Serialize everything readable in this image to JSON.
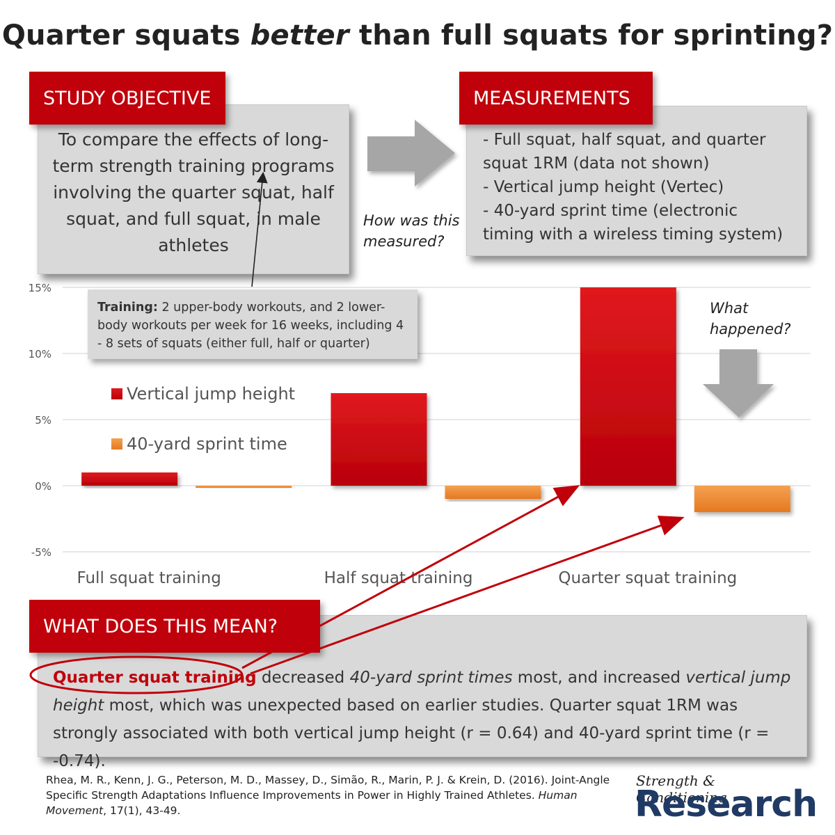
{
  "title": {
    "part1": "Quarter squats ",
    "emph": "better",
    "part2": " than full squats for sprinting?"
  },
  "objective": {
    "label": "STUDY OBJECTIVE",
    "text": "To compare the effects of long-term strength training programs involving the quarter squat, half squat, and full squat, in male athletes"
  },
  "measurements": {
    "label": "MEASUREMENTS",
    "items": [
      "- Full squat, half squat, and quarter",
      "squat 1RM (data not shown)",
      "- Vertical jump height (Vertec)",
      "- 40-yard sprint time (electronic",
      "timing with a wireless timing system)"
    ]
  },
  "annotations": {
    "how_line1": "How was this",
    "how_line2": "measured?",
    "what_line1": "What",
    "what_line2": "happened?"
  },
  "training": {
    "bold": "Training:",
    "text": " 2 upper-body workouts, and 2 lower-body workouts per week for 16 weeks, including 4 - 8 sets of squats (either full, half or quarter)"
  },
  "meaning": {
    "label": "WHAT DOES THIS MEAN?",
    "highlight": "Quarter squat training",
    "t1": " decreased ",
    "i1": "40-yard sprint times",
    "t2": " most, and increased ",
    "i2": "vertical jump height",
    "t3": " most, which was unexpected based on earlier studies. Quarter squat 1RM was strongly associated with both vertical jump height (r = 0.64) and 40-yard sprint time (r = -0.74)."
  },
  "citation": {
    "text": "Rhea, M. R., Kenn, J. G., Peterson, M. D., Massey, D., Simão, R., Marin, P. J. & Krein, D. (2016). Joint-Angle Specific Strength Adaptations Influence Improvements in Power in Highly Trained Athletes. ",
    "journal": "Human Movement",
    "tail": ", 17(1), 43-49."
  },
  "brand": {
    "sub": "Strength & Conditioning",
    "main": "Research"
  },
  "colors": {
    "accent_red": "#c0000a",
    "bar_red": "#cc0a0f",
    "bar_orange": "#f0882e",
    "grid": "#d9d9d9",
    "brand_blue": "#1f3a64"
  },
  "chart_data": {
    "type": "bar",
    "categories": [
      "Full squat training",
      "Half squat training",
      "Quarter squat training"
    ],
    "series": [
      {
        "name": "Vertical jump height",
        "values": [
          1,
          7,
          15
        ]
      },
      {
        "name": "40-yard sprint time",
        "values": [
          -0.1,
          -1,
          -2
        ]
      }
    ],
    "ylim": [
      -5,
      15
    ],
    "yticks": [
      -5,
      0,
      5,
      10,
      15
    ],
    "ytick_labels": [
      "-5%",
      "0%",
      "5%",
      "10%",
      "15%"
    ],
    "grid": true,
    "legend": "left"
  }
}
